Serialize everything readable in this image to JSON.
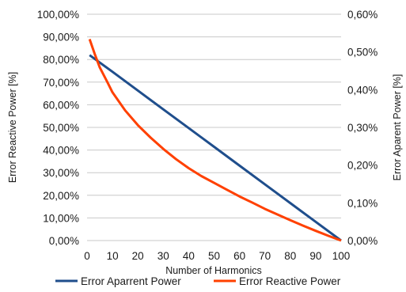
{
  "chart_data": {
    "type": "line",
    "xlabel": "Number of Harmonics",
    "ylabel_left": "Error Reactive Power [%]",
    "ylabel_right": "Error Aparent Power [%]",
    "xlim": [
      0,
      100
    ],
    "ylim_left": [
      0,
      100
    ],
    "ylim_right": [
      0,
      0.6
    ],
    "x_ticks": [
      "0",
      "10",
      "20",
      "30",
      "40",
      "50",
      "60",
      "70",
      "80",
      "90",
      "100"
    ],
    "y_left_ticks": [
      "0,00%",
      "10,00%",
      "20,00%",
      "30,00%",
      "40,00%",
      "50,00%",
      "60,00%",
      "70,00%",
      "80,00%",
      "90,00%",
      "100,00%"
    ],
    "y_right_ticks": [
      "0,00%",
      "0,10%",
      "0,20%",
      "0,30%",
      "0,40%",
      "0,50%",
      "0,60%"
    ],
    "grid": true,
    "legend_position": "bottom",
    "series": [
      {
        "name": "Error Aparrent Power",
        "axis": "right",
        "color": "#1f4e8c",
        "x": [
          1,
          10,
          20,
          30,
          40,
          50,
          60,
          70,
          80,
          90,
          100
        ],
        "y": [
          0.4915,
          0.4475,
          0.3977,
          0.3478,
          0.2983,
          0.2486,
          0.1988,
          0.1491,
          0.0994,
          0.0497,
          0.0
        ]
      },
      {
        "name": "Error Reactive Power",
        "axis": "left",
        "color": "#ff4000",
        "x": [
          1,
          3,
          5,
          8,
          10,
          15,
          20,
          25,
          30,
          35,
          40,
          45,
          50,
          55,
          60,
          65,
          70,
          75,
          80,
          85,
          90,
          95,
          100
        ],
        "y": [
          89.0,
          82.5,
          76.5,
          70.0,
          65.5,
          57.5,
          51.0,
          45.5,
          40.5,
          36.0,
          32.0,
          28.5,
          25.5,
          22.5,
          19.5,
          16.8,
          14.0,
          11.5,
          9.0,
          6.6,
          4.3,
          2.1,
          0.0
        ]
      }
    ]
  }
}
